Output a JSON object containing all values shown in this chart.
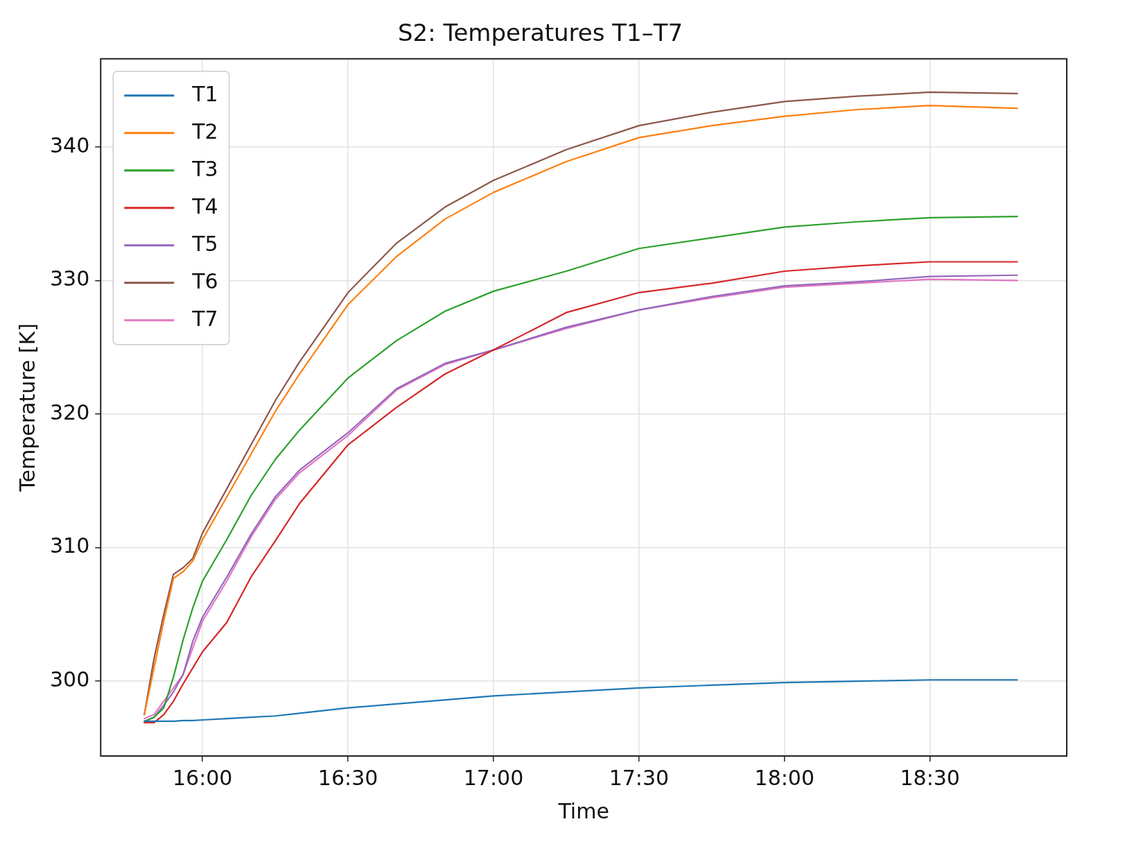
{
  "chart_data": {
    "type": "line",
    "title": "S2: Temperatures T1–T7",
    "xlabel": "Time",
    "ylabel": "Temperature [K]",
    "x": [
      15.8,
      15.8333,
      15.8667,
      15.9,
      15.9333,
      15.9667,
      16,
      16.0833,
      16.1667,
      16.25,
      16.3333,
      16.5,
      16.6667,
      16.8333,
      17,
      17.25,
      17.5,
      17.75,
      18,
      18.25,
      18.5,
      18.8
    ],
    "series": [
      {
        "name": "T1",
        "color": "#1f77b4",
        "values": [
          297,
          297,
          297,
          297,
          297.05,
          297.05,
          297.1,
          297.2,
          297.3,
          297.4,
          297.6,
          298,
          298.3,
          298.6,
          298.9,
          299.2,
          299.5,
          299.7,
          299.9,
          300,
          300.1,
          300.1
        ]
      },
      {
        "name": "T2",
        "color": "#ff7f0e",
        "values": [
          297.5,
          301,
          304.5,
          307.7,
          308.2,
          309,
          310.6,
          313.8,
          317,
          320.2,
          323,
          328.2,
          331.8,
          334.6,
          336.6,
          338.9,
          340.7,
          341.6,
          342.3,
          342.8,
          343.1,
          342.9
        ]
      },
      {
        "name": "T3",
        "color": "#2ca02c",
        "values": [
          297,
          297.3,
          298,
          300.3,
          303.1,
          305.5,
          307.5,
          310.6,
          313.9,
          316.6,
          318.8,
          322.7,
          325.5,
          327.7,
          329.2,
          330.7,
          332.4,
          333.2,
          334,
          334.4,
          334.7,
          334.8
        ]
      },
      {
        "name": "T4",
        "color": "#d62728",
        "values": [
          296.9,
          296.9,
          297.5,
          298.5,
          299.8,
          301,
          302.2,
          304.4,
          307.8,
          310.5,
          313.3,
          317.7,
          320.5,
          323,
          324.8,
          327.6,
          329.1,
          329.8,
          330.7,
          331.1,
          331.4,
          331.4
        ]
      },
      {
        "name": "T5",
        "color": "#9467bd",
        "values": [
          297,
          297.3,
          298.2,
          299.2,
          300.5,
          303,
          304.8,
          307.8,
          311,
          313.8,
          315.8,
          318.6,
          321.9,
          323.8,
          324.8,
          326.5,
          327.8,
          328.8,
          329.6,
          329.9,
          330.3,
          330.4
        ]
      },
      {
        "name": "T6",
        "color": "#8c564b",
        "values": [
          297.5,
          301.7,
          305,
          308,
          308.5,
          309.2,
          311.1,
          314.4,
          317.7,
          321,
          323.9,
          329.1,
          332.8,
          335.5,
          337.5,
          339.8,
          341.6,
          342.6,
          343.4,
          343.8,
          344.1,
          344
        ]
      },
      {
        "name": "T7",
        "color": "#e377c2",
        "values": [
          297.2,
          297.5,
          298.5,
          299.5,
          300.5,
          302.5,
          304.5,
          307.5,
          310.8,
          313.6,
          315.6,
          318.4,
          321.8,
          323.7,
          324.8,
          326.4,
          327.8,
          328.7,
          329.5,
          329.8,
          330.1,
          330
        ]
      }
    ],
    "xlim": [
      15.65,
      18.97
    ],
    "xticks": [
      {
        "value": 16,
        "label": "16:00"
      },
      {
        "value": 16.5,
        "label": "16:30"
      },
      {
        "value": 17,
        "label": "17:00"
      },
      {
        "value": 17.5,
        "label": "17:30"
      },
      {
        "value": 18,
        "label": "18:00"
      },
      {
        "value": 18.5,
        "label": "18:30"
      }
    ],
    "ylim": [
      294.4,
      346.6
    ],
    "yticks": [
      300,
      310,
      320,
      330,
      340
    ],
    "grid": true,
    "legend": "top left",
    "marker": "none",
    "line_style": "solid"
  }
}
